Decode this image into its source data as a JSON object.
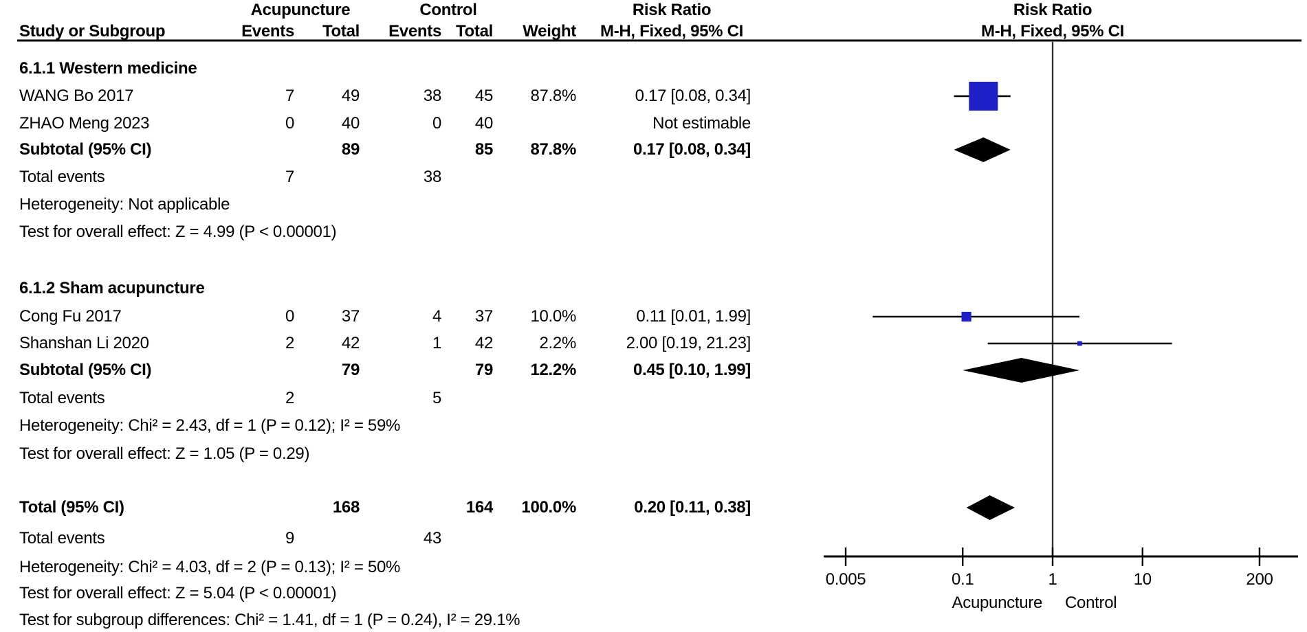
{
  "chart_data": {
    "type": "forest",
    "effect_label": "Risk Ratio",
    "method_label": "M-H, Fixed, 95% CI",
    "columns": {
      "study": "Study or Subgroup",
      "group1": "Acupuncture",
      "group2": "Control",
      "events": "Events",
      "total": "Total",
      "weight": "Weight"
    },
    "axis": {
      "scale": "log",
      "range": [
        0.005,
        200
      ],
      "ticks": [
        "0.005",
        "0.1",
        "1",
        "10",
        "200"
      ],
      "favours_left": "Acupuncture",
      "favours_right": "Control"
    },
    "colors": {
      "marker": "#1F1FC8",
      "diamond": "#000000",
      "ci_line": "#000000"
    },
    "sections": [
      {
        "heading": "6.1.1 Western medicine",
        "studies": [
          {
            "name": "WANG Bo 2017",
            "e1": "7",
            "t1": "49",
            "e2": "38",
            "t2": "45",
            "weight": "87.8%",
            "weight_value": 87.8,
            "ci_text": "0.17 [0.08, 0.34]",
            "rr": 0.17,
            "ci": [
              0.08,
              0.34
            ],
            "estimable": true
          },
          {
            "name": "ZHAO Meng 2023",
            "e1": "0",
            "t1": "40",
            "e2": "0",
            "t2": "40",
            "weight": "",
            "ci_text": "Not estimable",
            "estimable": false
          }
        ],
        "subtotal": {
          "name": "Subtotal (95% CI)",
          "t1": "89",
          "t2": "85",
          "weight": "87.8%",
          "ci_text": "0.17 [0.08, 0.34]",
          "rr": 0.17,
          "ci": [
            0.08,
            0.34
          ]
        },
        "total_events": {
          "name": "Total events",
          "e1": "7",
          "e2": "38"
        },
        "notes": [
          "Heterogeneity: Not applicable",
          "Test for overall effect: Z = 4.99 (P < 0.00001)"
        ]
      },
      {
        "heading": "6.1.2 Sham acupuncture",
        "studies": [
          {
            "name": "Cong Fu 2017",
            "e1": "0",
            "t1": "37",
            "e2": "4",
            "t2": "37",
            "weight": "10.0%",
            "weight_value": 10.0,
            "ci_text": "0.11 [0.01, 1.99]",
            "rr": 0.11,
            "ci": [
              0.01,
              1.99
            ],
            "estimable": true
          },
          {
            "name": "Shanshan Li 2020",
            "e1": "2",
            "t1": "42",
            "e2": "1",
            "t2": "42",
            "weight": "2.2%",
            "weight_value": 2.2,
            "ci_text": "2.00 [0.19, 21.23]",
            "rr": 2.0,
            "ci": [
              0.19,
              21.23
            ],
            "estimable": true
          }
        ],
        "subtotal": {
          "name": "Subtotal (95% CI)",
          "t1": "79",
          "t2": "79",
          "weight": "12.2%",
          "ci_text": "0.45 [0.10, 1.99]",
          "rr": 0.45,
          "ci": [
            0.1,
            1.99
          ]
        },
        "total_events": {
          "name": "Total events",
          "e1": "2",
          "e2": "5"
        },
        "notes": [
          "Heterogeneity: Chi² = 2.43, df = 1 (P = 0.12); I² = 59%",
          "Test for overall effect: Z = 1.05 (P = 0.29)"
        ]
      }
    ],
    "overall": {
      "total": {
        "name": "Total (95% CI)",
        "t1": "168",
        "t2": "164",
        "weight": "100.0%",
        "ci_text": "0.20 [0.11, 0.38]",
        "rr": 0.2,
        "ci": [
          0.11,
          0.38
        ]
      },
      "total_events": {
        "name": "Total events",
        "e1": "9",
        "e2": "43"
      },
      "notes": [
        "Heterogeneity: Chi² = 4.03, df = 2 (P = 0.13); I² = 50%",
        "Test for overall effect: Z = 5.04 (P < 0.00001)",
        "Test for subgroup differences: Chi² = 1.41, df = 1 (P = 0.24), I² = 29.1%"
      ]
    }
  }
}
